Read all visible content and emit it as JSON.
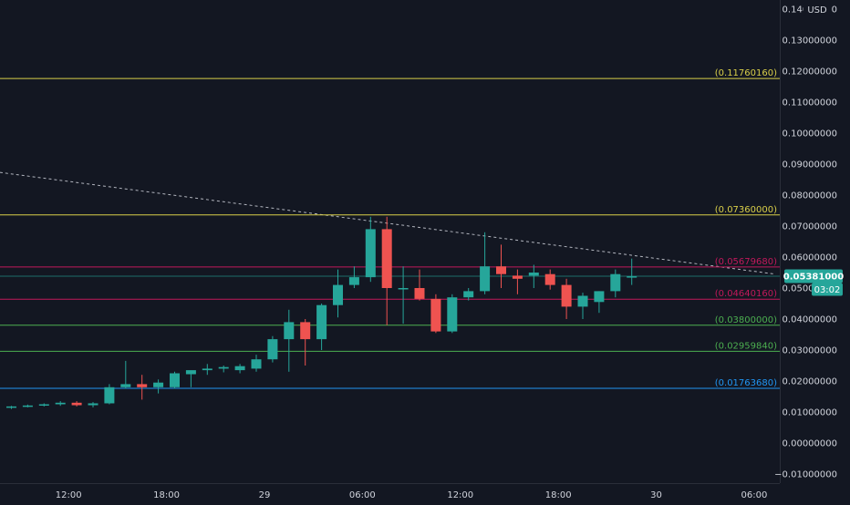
{
  "currency_badge": "USD",
  "chart_data": {
    "type": "candlestick",
    "title": "",
    "xlabel": "",
    "ylabel": "",
    "ylim": [
      -0.0145,
      0.1445
    ],
    "yticks": [
      "0.14000000",
      "0.13000000",
      "0.12000000",
      "0.11000000",
      "0.10000000",
      "0.09000000",
      "0.08000000",
      "0.07000000",
      "0.06000000",
      "0.05000000",
      "0.04000000",
      "0.03000000",
      "0.02000000",
      "0.01000000",
      "0.00000000",
      "−0.01000000"
    ],
    "ytick_values": [
      0.14,
      0.13,
      0.12,
      0.11,
      0.1,
      0.09,
      0.08,
      0.07,
      0.06,
      0.05,
      0.04,
      0.03,
      0.02,
      0.01,
      0.0,
      -0.01
    ],
    "xticks": [
      {
        "label": "12:00",
        "index": 3.5
      },
      {
        "label": "18:00",
        "index": 9.5
      },
      {
        "label": "29",
        "index": 15.5
      },
      {
        "label": "06:00",
        "index": 21.5
      },
      {
        "label": "12:00",
        "index": 27.5
      },
      {
        "label": "18:00",
        "index": 33.5
      },
      {
        "label": "30",
        "index": 39.5
      },
      {
        "label": "06:00",
        "index": 45.5
      }
    ],
    "candles": [
      {
        "o": 0.0115,
        "h": 0.012,
        "l": 0.011,
        "c": 0.0118
      },
      {
        "o": 0.0118,
        "h": 0.0124,
        "l": 0.0115,
        "c": 0.0121
      },
      {
        "o": 0.0121,
        "h": 0.0128,
        "l": 0.0118,
        "c": 0.0125
      },
      {
        "o": 0.0125,
        "h": 0.0135,
        "l": 0.012,
        "c": 0.013
      },
      {
        "o": 0.013,
        "h": 0.0135,
        "l": 0.0118,
        "c": 0.0122
      },
      {
        "o": 0.0122,
        "h": 0.0132,
        "l": 0.0115,
        "c": 0.0128
      },
      {
        "o": 0.0128,
        "h": 0.019,
        "l": 0.0125,
        "c": 0.018
      },
      {
        "o": 0.018,
        "h": 0.0265,
        "l": 0.0175,
        "c": 0.019
      },
      {
        "o": 0.019,
        "h": 0.022,
        "l": 0.014,
        "c": 0.018
      },
      {
        "o": 0.018,
        "h": 0.0205,
        "l": 0.016,
        "c": 0.0195
      },
      {
        "o": 0.018,
        "h": 0.023,
        "l": 0.0175,
        "c": 0.0225
      },
      {
        "o": 0.0222,
        "h": 0.023,
        "l": 0.018,
        "c": 0.0235
      },
      {
        "o": 0.0235,
        "h": 0.0255,
        "l": 0.022,
        "c": 0.024
      },
      {
        "o": 0.024,
        "h": 0.025,
        "l": 0.0228,
        "c": 0.0245
      },
      {
        "o": 0.0235,
        "h": 0.0255,
        "l": 0.0225,
        "c": 0.0248
      },
      {
        "o": 0.024,
        "h": 0.0285,
        "l": 0.023,
        "c": 0.027
      },
      {
        "o": 0.027,
        "h": 0.0345,
        "l": 0.026,
        "c": 0.0335
      },
      {
        "o": 0.0335,
        "h": 0.043,
        "l": 0.023,
        "c": 0.039
      },
      {
        "o": 0.039,
        "h": 0.04,
        "l": 0.025,
        "c": 0.0335
      },
      {
        "o": 0.0335,
        "h": 0.045,
        "l": 0.03,
        "c": 0.0445
      },
      {
        "o": 0.0445,
        "h": 0.056,
        "l": 0.0405,
        "c": 0.051
      },
      {
        "o": 0.051,
        "h": 0.057,
        "l": 0.05,
        "c": 0.0535
      },
      {
        "o": 0.0535,
        "h": 0.073,
        "l": 0.052,
        "c": 0.069
      },
      {
        "o": 0.069,
        "h": 0.073,
        "l": 0.038,
        "c": 0.05
      },
      {
        "o": 0.05,
        "h": 0.057,
        "l": 0.0385,
        "c": 0.05
      },
      {
        "o": 0.05,
        "h": 0.056,
        "l": 0.046,
        "c": 0.0465
      },
      {
        "o": 0.0465,
        "h": 0.048,
        "l": 0.0355,
        "c": 0.036
      },
      {
        "o": 0.036,
        "h": 0.048,
        "l": 0.0355,
        "c": 0.047
      },
      {
        "o": 0.047,
        "h": 0.05,
        "l": 0.046,
        "c": 0.049
      },
      {
        "o": 0.049,
        "h": 0.068,
        "l": 0.048,
        "c": 0.057
      },
      {
        "o": 0.057,
        "h": 0.064,
        "l": 0.05,
        "c": 0.0545
      },
      {
        "o": 0.054,
        "h": 0.056,
        "l": 0.048,
        "c": 0.053
      },
      {
        "o": 0.054,
        "h": 0.0575,
        "l": 0.05,
        "c": 0.055
      },
      {
        "o": 0.0545,
        "h": 0.056,
        "l": 0.0495,
        "c": 0.051
      },
      {
        "o": 0.051,
        "h": 0.053,
        "l": 0.04,
        "c": 0.044
      },
      {
        "o": 0.044,
        "h": 0.0485,
        "l": 0.04,
        "c": 0.0475
      },
      {
        "o": 0.0455,
        "h": 0.049,
        "l": 0.042,
        "c": 0.049
      },
      {
        "o": 0.049,
        "h": 0.056,
        "l": 0.047,
        "c": 0.0545
      },
      {
        "o": 0.0537,
        "h": 0.0595,
        "l": 0.051,
        "c": 0.0538
      }
    ],
    "levels": [
      {
        "label": "(0.11760160)",
        "value": 0.1176016,
        "color": "#d9cf49"
      },
      {
        "label": "(0.07360000)",
        "value": 0.0736,
        "color": "#d9cf49"
      },
      {
        "label": "(0.05679680)",
        "value": 0.0567968,
        "color": "#c2185b"
      },
      {
        "label": "(0.04640160)",
        "value": 0.0464016,
        "color": "#c2185b"
      },
      {
        "label": "(0.03800000)",
        "value": 0.038,
        "color": "#4caf50"
      },
      {
        "label": "(0.02959840)",
        "value": 0.0295984,
        "color": "#4caf50"
      },
      {
        "label": "(0.01763680)",
        "value": 0.0176368,
        "color": "#2196f3"
      }
    ],
    "current_price": {
      "label": "0.05381000",
      "value": 0.05381,
      "countdown": "03:02"
    },
    "trendline": [
      {
        "index": -1.7,
        "value": 0.088
      },
      {
        "index": 46.8,
        "value": 0.0545
      }
    ],
    "grid": false,
    "colors": {
      "up": "#26a69a",
      "down": "#ef5350",
      "background": "#131722",
      "axis_text": "#d1d4dc",
      "badge": "#26a69a"
    }
  }
}
